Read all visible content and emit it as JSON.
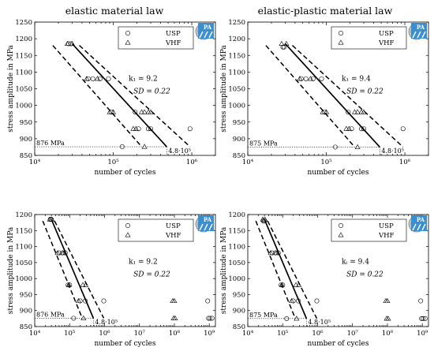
{
  "column_titles": [
    "elastic material law",
    "elastic-plastic material law"
  ],
  "chart_data": [
    {
      "type": "scatter",
      "column_title": "elastic material law",
      "xlabel": "number of cycles",
      "ylabel": "stress amplitude in MPa",
      "x_scale": "log",
      "xlim": [
        10000,
        2000000
      ],
      "ylim": [
        850,
        1250
      ],
      "x_ticks": [
        10000,
        100000,
        1000000
      ],
      "x_tick_labels": [
        "10⁴",
        "10⁵",
        "10⁶"
      ],
      "y_ticks": [
        850,
        900,
        950,
        1000,
        1050,
        1100,
        1150,
        1200,
        1250
      ],
      "legend": [
        {
          "name": "USP",
          "marker": "circle"
        },
        {
          "name": "VHF",
          "marker": "triangle"
        }
      ],
      "legend_position": "top-right",
      "annotations": {
        "k": "9.2",
        "sd": "0.22",
        "ref_stress": "876 MPa",
        "ref_cycles": "4.8·10⁵"
      },
      "k_label": "k₁ = ",
      "sd_label": "SD = ",
      "ref_stress_value": 876,
      "ref_cycles_value": 480000,
      "fit": {
        "mean": [
          [
            30000,
            1185
          ],
          [
            480000,
            876
          ]
        ],
        "band_lower": [
          [
            17000,
            1180
          ],
          [
            230000,
            876
          ]
        ],
        "band_upper": [
          [
            37000,
            1180
          ],
          [
            950000,
            876
          ]
        ]
      },
      "series": [
        {
          "name": "USP",
          "marker": "circle",
          "points": [
            [
              27000,
              1185
            ],
            [
              29000,
              1185
            ],
            [
              48000,
              1080
            ],
            [
              55000,
              1080
            ],
            [
              68000,
              1080
            ],
            [
              87000,
              1080
            ],
            [
              95000,
              980
            ],
            [
              190000,
              980
            ],
            [
              210000,
              930
            ],
            [
              280000,
              930
            ],
            [
              300000,
              930
            ],
            [
              950000,
              930
            ],
            [
              130000,
              876
            ]
          ]
        },
        {
          "name": "VHF",
          "marker": "triangle",
          "points": [
            [
              26000,
              1185
            ],
            [
              30000,
              1185
            ],
            [
              46000,
              1080
            ],
            [
              63000,
              1080
            ],
            [
              90000,
              980
            ],
            [
              100000,
              980
            ],
            [
              180000,
              930
            ],
            [
              195000,
              930
            ],
            [
              230000,
              980
            ],
            [
              250000,
              980
            ],
            [
              280000,
              980
            ],
            [
              300000,
              980
            ],
            [
              250000,
              876
            ]
          ]
        }
      ]
    },
    {
      "type": "scatter",
      "column_title": "elastic-plastic material law",
      "xlabel": "number of cycles",
      "ylabel": "stress amplitude in MPa",
      "x_scale": "log",
      "xlim": [
        10000,
        2000000
      ],
      "ylim": [
        850,
        1250
      ],
      "x_ticks": [
        10000,
        100000,
        1000000
      ],
      "x_tick_labels": [
        "10⁴",
        "10⁵",
        "10⁶"
      ],
      "y_ticks": [
        850,
        900,
        950,
        1000,
        1050,
        1100,
        1150,
        1200,
        1250
      ],
      "legend": [
        {
          "name": "USP",
          "marker": "circle"
        },
        {
          "name": "VHF",
          "marker": "triangle"
        }
      ],
      "legend_position": "top-right",
      "annotations": {
        "k": "9.4",
        "sd": "0.22",
        "ref_stress": "875 MPa",
        "ref_cycles": "4.8·10⁵"
      },
      "k_label": "k₁ = ",
      "sd_label": "SD = ",
      "ref_stress_value": 875,
      "ref_cycles_value": 480000,
      "fit": {
        "mean": [
          [
            30000,
            1185
          ],
          [
            480000,
            875
          ]
        ],
        "band_lower": [
          [
            17000,
            1180
          ],
          [
            230000,
            875
          ]
        ],
        "band_upper": [
          [
            37000,
            1180
          ],
          [
            950000,
            875
          ]
        ]
      },
      "series": [
        {
          "name": "USP",
          "marker": "circle",
          "points": [
            [
              28000,
              1175
            ],
            [
              29000,
              1175
            ],
            [
              48000,
              1080
            ],
            [
              55000,
              1080
            ],
            [
              68000,
              1080
            ],
            [
              87000,
              1080
            ],
            [
              95000,
              980
            ],
            [
              190000,
              980
            ],
            [
              210000,
              930
            ],
            [
              280000,
              930
            ],
            [
              300000,
              930
            ],
            [
              950000,
              930
            ],
            [
              130000,
              875
            ]
          ]
        },
        {
          "name": "VHF",
          "marker": "triangle",
          "points": [
            [
              27000,
              1185
            ],
            [
              31000,
              1185
            ],
            [
              46000,
              1080
            ],
            [
              63000,
              1080
            ],
            [
              90000,
              980
            ],
            [
              100000,
              980
            ],
            [
              180000,
              930
            ],
            [
              195000,
              930
            ],
            [
              230000,
              980
            ],
            [
              250000,
              980
            ],
            [
              280000,
              980
            ],
            [
              300000,
              980
            ],
            [
              250000,
              875
            ]
          ]
        }
      ]
    },
    {
      "type": "scatter",
      "xlabel": "number of cycles",
      "ylabel": "stress amplitude in MPa",
      "x_scale": "log",
      "xlim": [
        10000,
        1500000000
      ],
      "ylim": [
        850,
        1200
      ],
      "x_ticks": [
        10000,
        100000,
        1000000,
        10000000,
        100000000,
        1000000000
      ],
      "x_tick_labels": [
        "10⁴",
        "10⁵",
        "10⁶",
        "10⁷",
        "10⁸",
        "10⁹"
      ],
      "y_ticks": [
        850,
        900,
        950,
        1000,
        1050,
        1100,
        1150,
        1200
      ],
      "legend": [
        {
          "name": "USP",
          "marker": "circle"
        },
        {
          "name": "VHF",
          "marker": "triangle"
        }
      ],
      "legend_position": "top-right",
      "annotations": {
        "k": "9.2",
        "sd": "0.22",
        "ref_stress": "876 MPa",
        "ref_cycles": "4.8·10⁵"
      },
      "k_label": "k₁ = ",
      "sd_label": "SD = ",
      "ref_stress_value": 876,
      "ref_cycles_value": 480000,
      "fit": {
        "mean": [
          [
            30000,
            1185
          ],
          [
            480000,
            876
          ]
        ],
        "band_lower": [
          [
            17000,
            1180
          ],
          [
            230000,
            876
          ]
        ],
        "band_upper": [
          [
            37000,
            1180
          ],
          [
            950000,
            876
          ]
        ]
      },
      "series": [
        {
          "name": "USP",
          "marker": "circle",
          "points": [
            [
              28000,
              1185
            ],
            [
              30000,
              1185
            ],
            [
              50000,
              1080
            ],
            [
              62000,
              1080
            ],
            [
              75000,
              1080
            ],
            [
              90000,
              980
            ],
            [
              100000,
              980
            ],
            [
              200000,
              930
            ],
            [
              280000,
              930
            ],
            [
              950000,
              930
            ],
            [
              130000,
              876
            ],
            [
              900000000,
              930
            ],
            [
              950000000,
              876
            ],
            [
              1050000000,
              876
            ],
            [
              1200000000,
              876
            ]
          ]
        },
        {
          "name": "VHF",
          "marker": "triangle",
          "points": [
            [
              27000,
              1185
            ],
            [
              31000,
              1185
            ],
            [
              45000,
              1080
            ],
            [
              65000,
              1080
            ],
            [
              95000,
              980
            ],
            [
              180000,
              930
            ],
            [
              240000,
              980
            ],
            [
              290000,
              980
            ],
            [
              250000,
              876
            ],
            [
              90000000,
              930
            ],
            [
              100000000,
              930
            ],
            [
              95000000,
              876
            ],
            [
              105000000,
              876
            ]
          ]
        }
      ]
    },
    {
      "type": "scatter",
      "xlabel": "number of cycles",
      "ylabel": "stress amplitude in MPa",
      "x_scale": "log",
      "xlim": [
        10000,
        1500000000
      ],
      "ylim": [
        850,
        1200
      ],
      "x_ticks": [
        10000,
        100000,
        1000000,
        10000000,
        100000000,
        1000000000
      ],
      "x_tick_labels": [
        "10⁴",
        "10⁵",
        "10⁶",
        "10⁷",
        "10⁸",
        "10⁹"
      ],
      "y_ticks": [
        850,
        900,
        950,
        1000,
        1050,
        1100,
        1150,
        1200
      ],
      "legend": [
        {
          "name": "USP",
          "marker": "circle"
        },
        {
          "name": "VHF",
          "marker": "triangle"
        }
      ],
      "legend_position": "top-right",
      "annotations": {
        "k": "9.4",
        "sd": "0.22",
        "ref_stress": "875 MPa",
        "ref_cycles": "4.8·10⁵"
      },
      "k_label": "kᵢ = ",
      "sd_label": "SD = ",
      "ref_stress_value": 875,
      "ref_cycles_value": 480000,
      "fit": {
        "mean": [
          [
            30000,
            1185
          ],
          [
            480000,
            875
          ]
        ],
        "band_lower": [
          [
            17000,
            1180
          ],
          [
            230000,
            875
          ]
        ],
        "band_upper": [
          [
            37000,
            1180
          ],
          [
            950000,
            875
          ]
        ]
      },
      "series": [
        {
          "name": "USP",
          "marker": "circle",
          "points": [
            [
              28000,
              1180
            ],
            [
              30000,
              1180
            ],
            [
              50000,
              1080
            ],
            [
              62000,
              1080
            ],
            [
              75000,
              1080
            ],
            [
              90000,
              980
            ],
            [
              100000,
              980
            ],
            [
              200000,
              930
            ],
            [
              280000,
              930
            ],
            [
              950000,
              930
            ],
            [
              130000,
              875
            ],
            [
              900000000,
              930
            ],
            [
              950000000,
              875
            ],
            [
              1050000000,
              875
            ],
            [
              1200000000,
              875
            ]
          ]
        },
        {
          "name": "VHF",
          "marker": "triangle",
          "points": [
            [
              27000,
              1185
            ],
            [
              31000,
              1185
            ],
            [
              45000,
              1080
            ],
            [
              65000,
              1080
            ],
            [
              95000,
              980
            ],
            [
              180000,
              930
            ],
            [
              240000,
              980
            ],
            [
              290000,
              980
            ],
            [
              250000,
              875
            ],
            [
              90000000,
              930
            ],
            [
              100000000,
              930
            ],
            [
              95000000,
              875
            ],
            [
              105000000,
              875
            ]
          ]
        }
      ]
    }
  ],
  "colors": {
    "logo_blue": "#3a8fd0",
    "logo_gray": "#8a8a8a",
    "ink": "#000000"
  },
  "icons": [
    "university-seal-icon",
    "institute-pa-logo-icon"
  ],
  "logo_text": "PA"
}
